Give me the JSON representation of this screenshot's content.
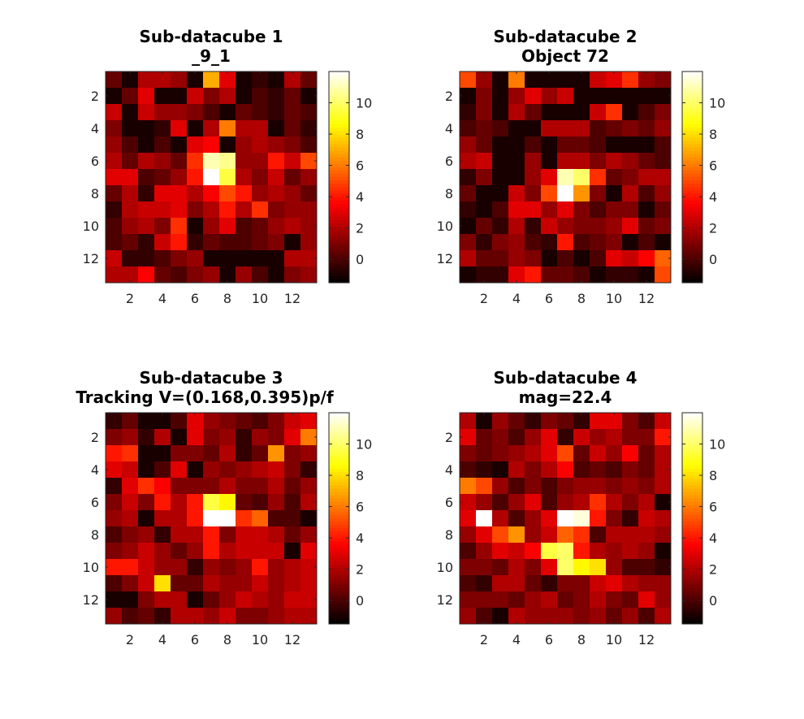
{
  "figure": {
    "background": "#ffffff"
  },
  "chart_data": [
    {
      "type": "heatmap",
      "title": [
        "Sub-datacube 1",
        "_9_1"
      ],
      "xticks": [
        2,
        4,
        6,
        8,
        10,
        12
      ],
      "yticks": [
        2,
        4,
        6,
        8,
        10,
        12
      ],
      "xlim": [
        0.5,
        13.5
      ],
      "ylim": [
        0.5,
        13.5
      ],
      "colormap": "hot",
      "clim": [
        -1.5,
        12
      ],
      "colorbar_ticks": [
        0,
        2,
        4,
        6,
        8,
        10
      ],
      "z": [
        [
          0.5,
          -1,
          2,
          2,
          1.5,
          -1,
          7,
          3,
          -1,
          -0.5,
          -1,
          2,
          0.5
        ],
        [
          -1,
          0.5,
          3,
          -1,
          -1,
          2.5,
          1,
          2,
          -1,
          0,
          -0.5,
          0.5,
          -1
        ],
        [
          2.5,
          -1,
          2.5,
          1.5,
          1.5,
          1,
          0,
          -1,
          0.5,
          0,
          -0.5,
          0.5,
          0
        ],
        [
          1,
          -1,
          -1,
          -0.5,
          3,
          -1,
          2,
          6,
          2,
          2,
          -1,
          0.5,
          -0.5
        ],
        [
          1.5,
          0,
          -1,
          0,
          -1,
          3,
          3.5,
          -1,
          1.5,
          2,
          1.5,
          1,
          0
        ],
        [
          2,
          0.5,
          2,
          1.5,
          0.5,
          4.5,
          11,
          10.5,
          1.5,
          1.5,
          4,
          2.5,
          5
        ],
        [
          3,
          3,
          0,
          0.5,
          1.5,
          4,
          12,
          9.5,
          2,
          1,
          2.5,
          0.5,
          1.5
        ],
        [
          0.5,
          2,
          -0.5,
          3,
          3,
          2,
          3.5,
          5,
          4,
          1.5,
          2,
          1.5,
          0.5
        ],
        [
          -0.5,
          2,
          2.5,
          2.5,
          3,
          1,
          2,
          4,
          2,
          4.5,
          1,
          1.5,
          1.5
        ],
        [
          0,
          1.5,
          2,
          1,
          4.5,
          -1,
          1.5,
          3,
          0,
          0.5,
          1.5,
          2,
          1.5
        ],
        [
          0,
          0.5,
          -0.5,
          2.5,
          4,
          -0.5,
          0.5,
          0,
          0,
          0.5,
          1,
          -1,
          1.5
        ],
        [
          2.5,
          -0.5,
          -0.5,
          0,
          1,
          1.5,
          -1,
          -1,
          -1,
          -1,
          -1,
          2,
          2
        ],
        [
          2,
          2,
          3.5,
          0.5,
          0,
          1,
          1.5,
          -1,
          1.5,
          0,
          -1,
          1,
          1.5
        ]
      ]
    },
    {
      "type": "heatmap",
      "title": [
        "Sub-datacube 2",
        "Object 72"
      ],
      "xticks": [
        2,
        4,
        6,
        8,
        10,
        12
      ],
      "yticks": [
        2,
        4,
        6,
        8,
        10,
        12
      ],
      "xlim": [
        0.5,
        13.5
      ],
      "ylim": [
        0.5,
        13.5
      ],
      "colormap": "hot",
      "clim": [
        -1.5,
        12
      ],
      "colorbar_ticks": [
        0,
        2,
        4,
        6,
        8,
        10
      ],
      "z": [
        [
          5,
          1.5,
          -1,
          6,
          -1,
          -1,
          -1,
          -1,
          2.5,
          3,
          4.5,
          1.5,
          1
        ],
        [
          -1,
          1,
          -1,
          1.5,
          3,
          1.5,
          2.5,
          -1,
          -1,
          -1,
          -1,
          -1,
          -1
        ],
        [
          -0.5,
          1,
          -1,
          2,
          0.5,
          -1,
          -1,
          -1,
          2.5,
          4.5,
          -1,
          0,
          1
        ],
        [
          0,
          0.5,
          0,
          -1,
          -1,
          2,
          2,
          2,
          0,
          0.5,
          1,
          0.5,
          1.5
        ],
        [
          1.5,
          0.5,
          -1,
          -1,
          0,
          -1,
          0.5,
          0.5,
          0,
          -1,
          -1,
          -1,
          0
        ],
        [
          2,
          2.5,
          -1,
          -1,
          1.5,
          -1,
          2,
          2,
          1,
          2,
          1.5,
          0.5,
          0
        ],
        [
          -0.5,
          1,
          -1,
          -1,
          1.5,
          3,
          11,
          10,
          4.5,
          0.5,
          1,
          2,
          2
        ],
        [
          0.5,
          -1,
          -1,
          2.5,
          1,
          5,
          12,
          6.5,
          1,
          -1,
          2,
          0,
          1.5
        ],
        [
          -0.5,
          -1,
          0,
          3,
          3,
          1.5,
          3,
          1,
          0,
          1,
          1,
          -1,
          0.5
        ],
        [
          -1,
          0.5,
          -0.5,
          2,
          -0.5,
          2.5,
          1.5,
          1,
          1,
          1.5,
          3,
          0.5,
          1
        ],
        [
          1,
          -0.5,
          1,
          1.5,
          0,
          -0.5,
          4,
          0,
          0.5,
          1,
          -1,
          0,
          -1
        ],
        [
          2,
          0.5,
          0.5,
          1.5,
          1,
          -1,
          0,
          -1,
          0,
          3,
          2.5,
          3.5,
          5.5
        ],
        [
          -1,
          -0.5,
          -0.5,
          3,
          4,
          0.5,
          0.5,
          0,
          -1,
          -0.5,
          -0.5,
          -1,
          5
        ]
      ]
    },
    {
      "type": "heatmap",
      "title": [
        "Sub-datacube 3",
        "Tracking V=(0.168,0.395)p/f"
      ],
      "xticks": [
        2,
        4,
        6,
        8,
        10,
        12
      ],
      "yticks": [
        2,
        4,
        6,
        8,
        10,
        12
      ],
      "xlim": [
        0.5,
        13.5
      ],
      "ylim": [
        0.5,
        13.5
      ],
      "colormap": "hot",
      "clim": [
        -1.5,
        12
      ],
      "colorbar_ticks": [
        0,
        2,
        4,
        6,
        8,
        10
      ],
      "z": [
        [
          -0.5,
          0.5,
          -1,
          -1,
          0,
          3,
          1.5,
          1,
          0.5,
          0,
          1,
          2.5,
          3
        ],
        [
          1,
          1.5,
          -0.5,
          2,
          -1,
          3,
          1,
          1.5,
          -0.5,
          1.5,
          1,
          3,
          6
        ],
        [
          4,
          4.5,
          -1,
          -1,
          1,
          1,
          0.5,
          2,
          -0.5,
          0.5,
          6.5,
          1,
          1.5
        ],
        [
          3,
          2.5,
          -1,
          0,
          3,
          -1,
          1.5,
          1,
          1.5,
          2,
          2.5,
          1,
          -0.5
        ],
        [
          -0.5,
          3,
          4.5,
          3.5,
          1,
          1,
          1,
          2,
          1,
          1,
          2,
          0.5,
          1.5
        ],
        [
          1,
          2.5,
          1,
          4,
          2,
          4,
          9.5,
          8.5,
          0.5,
          0,
          1.5,
          0,
          2
        ],
        [
          1.5,
          2,
          -1,
          2,
          2,
          4,
          12,
          12,
          4.5,
          5.5,
          0,
          0,
          -1
        ],
        [
          0,
          1,
          1.5,
          -0.5,
          2,
          2,
          4,
          1,
          2.5,
          2.5,
          2,
          0.5,
          1.5
        ],
        [
          1,
          1.5,
          2.5,
          1.5,
          0.5,
          1.5,
          4,
          2,
          2.5,
          2.5,
          2.5,
          -1,
          3
        ],
        [
          4,
          4,
          2.5,
          1.5,
          1.5,
          -0.5,
          1.5,
          1,
          1.5,
          4,
          1.5,
          2,
          2.5
        ],
        [
          0,
          1,
          2.5,
          8,
          0.5,
          0.5,
          2,
          1.5,
          1.5,
          2.5,
          1.5,
          2,
          2.5
        ],
        [
          -1,
          -1,
          1,
          2,
          2,
          -1,
          0.5,
          1.5,
          2.5,
          2,
          1.5,
          2.5,
          2.5
        ],
        [
          1.5,
          0,
          0.5,
          -0.5,
          2,
          2,
          1.5,
          2.5,
          1,
          1,
          1.5,
          2,
          2
        ]
      ]
    },
    {
      "type": "heatmap",
      "title": [
        "Sub-datacube 4",
        "mag=22.4"
      ],
      "xticks": [
        2,
        4,
        6,
        8,
        10,
        12
      ],
      "yticks": [
        2,
        4,
        6,
        8,
        10,
        12
      ],
      "xlim": [
        0.5,
        13.5
      ],
      "ylim": [
        0.5,
        13.5
      ],
      "colormap": "hot",
      "clim": [
        -1.5,
        12
      ],
      "colorbar_ticks": [
        0,
        2,
        4,
        6,
        8,
        10
      ],
      "z": [
        [
          2,
          -1,
          1.5,
          0.5,
          -0.5,
          1,
          0.5,
          -0.5,
          3,
          3,
          1,
          0,
          2.5
        ],
        [
          3,
          0.5,
          1,
          0,
          1.5,
          3,
          -0.5,
          2.5,
          1.5,
          2,
          1,
          1,
          4
        ],
        [
          1,
          0.5,
          1,
          1.5,
          2,
          3,
          5,
          0.5,
          2.5,
          1.5,
          3.5,
          0.5,
          2
        ],
        [
          0,
          -0.5,
          -1,
          2,
          1,
          2,
          3.5,
          0,
          0.5,
          0,
          1,
          0.5,
          2
        ],
        [
          6,
          5,
          1.5,
          0,
          1,
          0,
          1,
          1.5,
          1.5,
          1,
          1.5,
          1,
          2
        ],
        [
          2.5,
          1.5,
          0,
          1.5,
          3,
          0,
          1.5,
          2,
          4.5,
          2,
          1,
          2,
          -1
        ],
        [
          3,
          12,
          2,
          0,
          1.5,
          3,
          12,
          11.5,
          4,
          1,
          -0.5,
          2.5,
          2
        ],
        [
          1.5,
          3,
          5,
          6.5,
          1.5,
          2.5,
          5.5,
          4.5,
          0,
          2,
          2,
          2,
          1.5
        ],
        [
          0,
          1.5,
          3,
          2.5,
          3.5,
          9.5,
          10,
          4,
          2,
          1.5,
          2,
          1.5,
          -1
        ],
        [
          1,
          1,
          0.5,
          2,
          1,
          3,
          10,
          8.5,
          8,
          1.5,
          0,
          0,
          -0.5
        ],
        [
          0,
          -0.5,
          2,
          2,
          0.5,
          -0.5,
          1,
          1,
          2.5,
          3,
          2,
          1.5,
          1.5
        ],
        [
          1,
          1,
          1,
          0.5,
          1.5,
          2,
          0.5,
          1,
          2,
          1,
          0.5,
          3,
          1.5
        ],
        [
          1.5,
          0,
          -1,
          2,
          1.5,
          1.5,
          1.5,
          1,
          1.5,
          0.5,
          1.5,
          0,
          2
        ]
      ]
    }
  ]
}
